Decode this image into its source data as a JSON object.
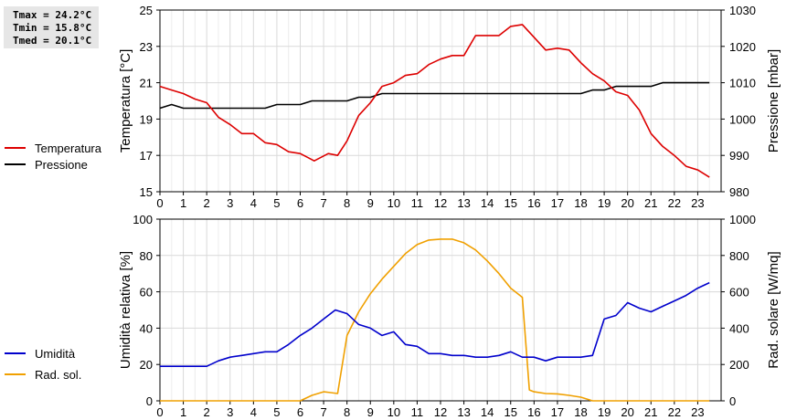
{
  "stats": {
    "tmax": "Tmax = 24.2°C",
    "tmin": "Tmin = 15.8°C",
    "tmed": "Tmed = 20.1°C"
  },
  "chart_data": [
    {
      "type": "line",
      "xlim": [
        0,
        24
      ],
      "xticks": [
        0,
        1,
        2,
        3,
        4,
        5,
        6,
        7,
        8,
        9,
        10,
        11,
        12,
        13,
        14,
        15,
        16,
        17,
        18,
        19,
        20,
        21,
        22,
        23
      ],
      "ylabel": "Temperatura [°C]",
      "ylim": [
        15,
        25
      ],
      "yticks": [
        15,
        17,
        19,
        21,
        23,
        25
      ],
      "ylabel_right": "Pressione [mbar]",
      "ylim_right": [
        980,
        1030
      ],
      "yticks_right": [
        980,
        990,
        1000,
        1010,
        1020,
        1030
      ],
      "grid": true,
      "legend_position": "left",
      "series": [
        {
          "name": "Temperatura",
          "color": "#dd0000",
          "axis": "left",
          "x": [
            0,
            0.5,
            1,
            1.5,
            2,
            2.5,
            3,
            3.5,
            4,
            4.5,
            5,
            5.5,
            6,
            6.3,
            6.6,
            6.9,
            7.2,
            7.6,
            8,
            8.5,
            9,
            9.5,
            10,
            10.5,
            11,
            11.5,
            12,
            12.5,
            13,
            13.5,
            14,
            14.5,
            15,
            15.5,
            16,
            16.5,
            17,
            17.5,
            18,
            18.5,
            19,
            19.5,
            20,
            20.5,
            21,
            21.5,
            22,
            22.5,
            23,
            23.5
          ],
          "y": [
            20.8,
            20.6,
            20.4,
            20.1,
            19.9,
            19.1,
            18.7,
            18.2,
            18.2,
            17.7,
            17.6,
            17.2,
            17.1,
            16.9,
            16.7,
            16.9,
            17.1,
            17.0,
            17.8,
            19.2,
            19.9,
            20.8,
            21.0,
            21.4,
            21.5,
            22.0,
            22.3,
            22.5,
            22.5,
            23.6,
            23.6,
            23.6,
            24.1,
            24.2,
            23.5,
            22.8,
            22.9,
            22.8,
            22.1,
            21.5,
            21.1,
            20.5,
            20.3,
            19.5,
            18.2,
            17.5,
            17.0,
            16.4,
            16.2,
            15.8
          ]
        },
        {
          "name": "Pressione",
          "color": "#000000",
          "axis": "right",
          "x": [
            0,
            0.5,
            1,
            1.5,
            2,
            2.5,
            3,
            3.5,
            4,
            4.5,
            5,
            5.5,
            6,
            6.5,
            7,
            7.5,
            8,
            8.5,
            9,
            9.5,
            10,
            10.5,
            11,
            11.5,
            12,
            12.5,
            13,
            13.5,
            14,
            14.5,
            15,
            15.5,
            16,
            16.5,
            17,
            17.5,
            18,
            18.5,
            19,
            19.5,
            20,
            20.5,
            21,
            21.5,
            22,
            22.5,
            23,
            23.5
          ],
          "y": [
            1003,
            1004,
            1003,
            1003,
            1003,
            1003,
            1003,
            1003,
            1003,
            1003,
            1004,
            1004,
            1004,
            1005,
            1005,
            1005,
            1005,
            1006,
            1006,
            1007,
            1007,
            1007,
            1007,
            1007,
            1007,
            1007,
            1007,
            1007,
            1007,
            1007,
            1007,
            1007,
            1007,
            1007,
            1007,
            1007,
            1007,
            1008,
            1008,
            1009,
            1009,
            1009,
            1009,
            1010,
            1010,
            1010,
            1010,
            1010
          ]
        }
      ]
    },
    {
      "type": "line",
      "xlim": [
        0,
        24
      ],
      "xticks": [
        0,
        1,
        2,
        3,
        4,
        5,
        6,
        7,
        8,
        9,
        10,
        11,
        12,
        13,
        14,
        15,
        16,
        17,
        18,
        19,
        20,
        21,
        22,
        23
      ],
      "ylabel": "Umidità relativa [%]",
      "ylim": [
        0,
        100
      ],
      "yticks": [
        0,
        20,
        40,
        60,
        80,
        100
      ],
      "ylabel_right": "Rad. solare [W/mq]",
      "ylim_right": [
        0,
        1000
      ],
      "yticks_right": [
        0,
        200,
        400,
        600,
        800,
        1000
      ],
      "grid": true,
      "legend_position": "left",
      "series": [
        {
          "name": "Umidità",
          "color": "#0000cc",
          "axis": "left",
          "x": [
            0,
            0.5,
            1,
            1.5,
            2,
            2.5,
            3,
            3.5,
            4,
            4.5,
            5,
            5.5,
            6,
            6.5,
            7,
            7.5,
            8,
            8.5,
            9,
            9.5,
            10,
            10.5,
            11,
            11.5,
            12,
            12.5,
            13,
            13.5,
            14,
            14.5,
            15,
            15.5,
            16,
            16.5,
            17,
            17.5,
            18,
            18.5,
            19,
            19.5,
            20,
            20.5,
            21,
            21.5,
            22,
            22.5,
            23,
            23.5
          ],
          "y": [
            19,
            19,
            19,
            19,
            19,
            22,
            24,
            25,
            26,
            27,
            27,
            31,
            36,
            40,
            45,
            50,
            48,
            42,
            40,
            36,
            38,
            31,
            30,
            26,
            26,
            25,
            25,
            24,
            24,
            25,
            27,
            24,
            24,
            22,
            24,
            24,
            24,
            25,
            45,
            47,
            54,
            51,
            49,
            52,
            55,
            58,
            62,
            65
          ]
        },
        {
          "name": "Rad. sol.",
          "color": "#f0a000",
          "axis": "right",
          "x": [
            0,
            1,
            2,
            3,
            4,
            5,
            6,
            6.5,
            7,
            7.3,
            7.6,
            8,
            8.5,
            9,
            9.5,
            10,
            10.5,
            11,
            11.5,
            12,
            12.5,
            13,
            13.5,
            14,
            14.5,
            15,
            15.5,
            15.8,
            16,
            16.5,
            17,
            17.5,
            18,
            18.5,
            19,
            20,
            21,
            22,
            23,
            23.5
          ],
          "y": [
            0,
            0,
            0,
            0,
            0,
            0,
            0,
            30,
            50,
            45,
            40,
            360,
            490,
            590,
            670,
            740,
            810,
            860,
            885,
            890,
            890,
            870,
            830,
            770,
            700,
            620,
            570,
            60,
            50,
            40,
            38,
            30,
            20,
            0,
            0,
            0,
            0,
            0,
            0,
            0
          ]
        }
      ]
    }
  ]
}
